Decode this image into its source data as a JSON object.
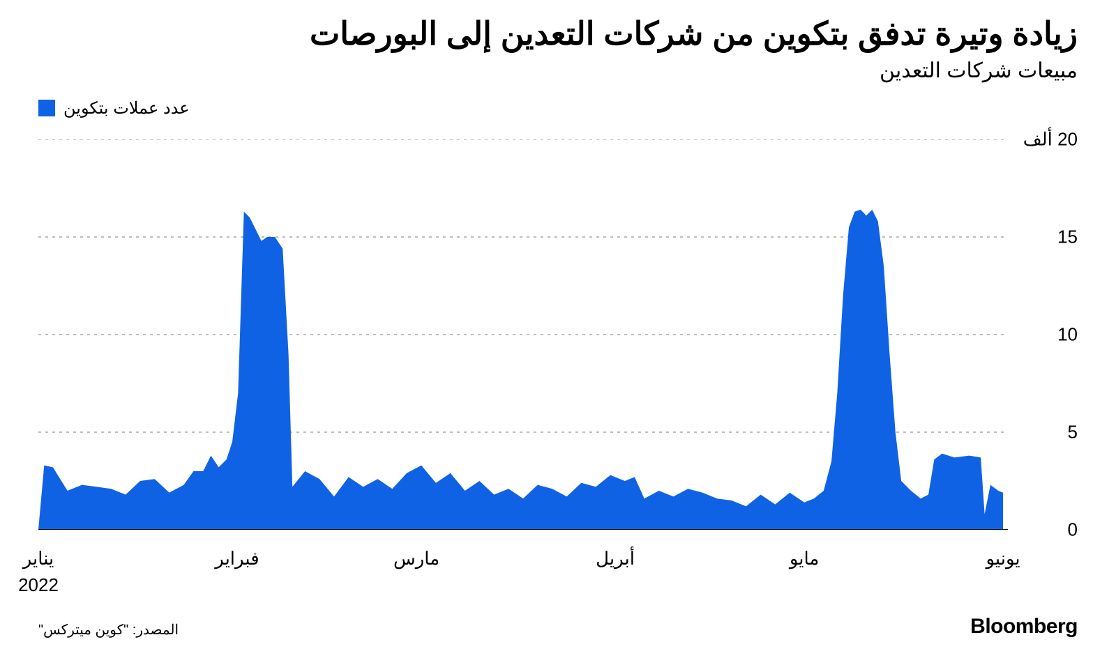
{
  "title": "زيادة وتيرة تدفق بتكوين من شركات التعدين إلى البورصات",
  "subtitle": "مبيعات شركات التعدين",
  "legend": {
    "label": "عدد عملات بتكوين",
    "swatch_color": "#1062e5"
  },
  "chart": {
    "type": "area",
    "background_color": "#ffffff",
    "series_color": "#1062e5",
    "grid_color": "#bdbdbd",
    "grid_dash": "4 6",
    "axis_color": "#000000",
    "ylim": [
      0,
      20
    ],
    "y_ticks": [
      {
        "value": 20,
        "label": "20 ألف"
      },
      {
        "value": 15,
        "label": "15"
      },
      {
        "value": 10,
        "label": "10"
      },
      {
        "value": 5,
        "label": "5"
      },
      {
        "value": 0,
        "label": "0"
      }
    ],
    "x_ticks": [
      {
        "pos": 0.0,
        "label": "يناير",
        "year": "2022"
      },
      {
        "pos": 0.205,
        "label": "فبراير"
      },
      {
        "pos": 0.39,
        "label": "مارس"
      },
      {
        "pos": 0.595,
        "label": "أبريل"
      },
      {
        "pos": 0.79,
        "label": "مايو"
      },
      {
        "pos": 0.995,
        "label": "يونيو"
      }
    ],
    "data": [
      [
        0.0,
        0.0
      ],
      [
        0.006,
        3.3
      ],
      [
        0.015,
        3.2
      ],
      [
        0.03,
        2.0
      ],
      [
        0.045,
        2.3
      ],
      [
        0.06,
        2.2
      ],
      [
        0.075,
        2.1
      ],
      [
        0.09,
        1.8
      ],
      [
        0.105,
        2.5
      ],
      [
        0.12,
        2.6
      ],
      [
        0.135,
        1.9
      ],
      [
        0.15,
        2.3
      ],
      [
        0.16,
        3.0
      ],
      [
        0.17,
        3.0
      ],
      [
        0.178,
        3.8
      ],
      [
        0.186,
        3.2
      ],
      [
        0.194,
        3.6
      ],
      [
        0.2,
        4.5
      ],
      [
        0.206,
        7.0
      ],
      [
        0.212,
        16.3
      ],
      [
        0.218,
        16.0
      ],
      [
        0.224,
        15.4
      ],
      [
        0.23,
        14.8
      ],
      [
        0.236,
        15.0
      ],
      [
        0.244,
        15.0
      ],
      [
        0.252,
        14.4
      ],
      [
        0.258,
        9.0
      ],
      [
        0.262,
        2.2
      ],
      [
        0.275,
        3.0
      ],
      [
        0.29,
        2.6
      ],
      [
        0.305,
        1.7
      ],
      [
        0.32,
        2.7
      ],
      [
        0.335,
        2.2
      ],
      [
        0.35,
        2.6
      ],
      [
        0.365,
        2.1
      ],
      [
        0.38,
        2.9
      ],
      [
        0.395,
        3.3
      ],
      [
        0.41,
        2.4
      ],
      [
        0.425,
        2.9
      ],
      [
        0.44,
        2.0
      ],
      [
        0.455,
        2.5
      ],
      [
        0.47,
        1.8
      ],
      [
        0.485,
        2.1
      ],
      [
        0.5,
        1.6
      ],
      [
        0.515,
        2.3
      ],
      [
        0.53,
        2.1
      ],
      [
        0.545,
        1.7
      ],
      [
        0.56,
        2.4
      ],
      [
        0.575,
        2.2
      ],
      [
        0.59,
        2.8
      ],
      [
        0.605,
        2.5
      ],
      [
        0.615,
        2.7
      ],
      [
        0.625,
        1.6
      ],
      [
        0.64,
        2.0
      ],
      [
        0.655,
        1.7
      ],
      [
        0.67,
        2.1
      ],
      [
        0.685,
        1.9
      ],
      [
        0.7,
        1.6
      ],
      [
        0.715,
        1.5
      ],
      [
        0.73,
        1.2
      ],
      [
        0.745,
        1.8
      ],
      [
        0.76,
        1.3
      ],
      [
        0.775,
        1.9
      ],
      [
        0.79,
        1.4
      ],
      [
        0.8,
        1.6
      ],
      [
        0.81,
        2.0
      ],
      [
        0.818,
        3.5
      ],
      [
        0.824,
        7.0
      ],
      [
        0.83,
        12.0
      ],
      [
        0.836,
        15.5
      ],
      [
        0.842,
        16.3
      ],
      [
        0.848,
        16.4
      ],
      [
        0.854,
        16.1
      ],
      [
        0.86,
        16.4
      ],
      [
        0.866,
        15.8
      ],
      [
        0.872,
        13.5
      ],
      [
        0.878,
        9.0
      ],
      [
        0.884,
        5.0
      ],
      [
        0.89,
        2.5
      ],
      [
        0.9,
        2.0
      ],
      [
        0.91,
        1.6
      ],
      [
        0.918,
        1.8
      ],
      [
        0.924,
        3.6
      ],
      [
        0.932,
        3.9
      ],
      [
        0.945,
        3.7
      ],
      [
        0.96,
        3.8
      ],
      [
        0.972,
        3.7
      ],
      [
        0.976,
        0.8
      ],
      [
        0.982,
        2.3
      ],
      [
        0.99,
        2.0
      ],
      [
        0.995,
        1.9
      ],
      [
        0.995,
        0.0
      ]
    ],
    "title_fontsize": 46,
    "subtitle_fontsize": 30,
    "tick_fontsize": 26
  },
  "source": "المصدر: \"كوين ميتركس\"",
  "brand": "Bloomberg"
}
